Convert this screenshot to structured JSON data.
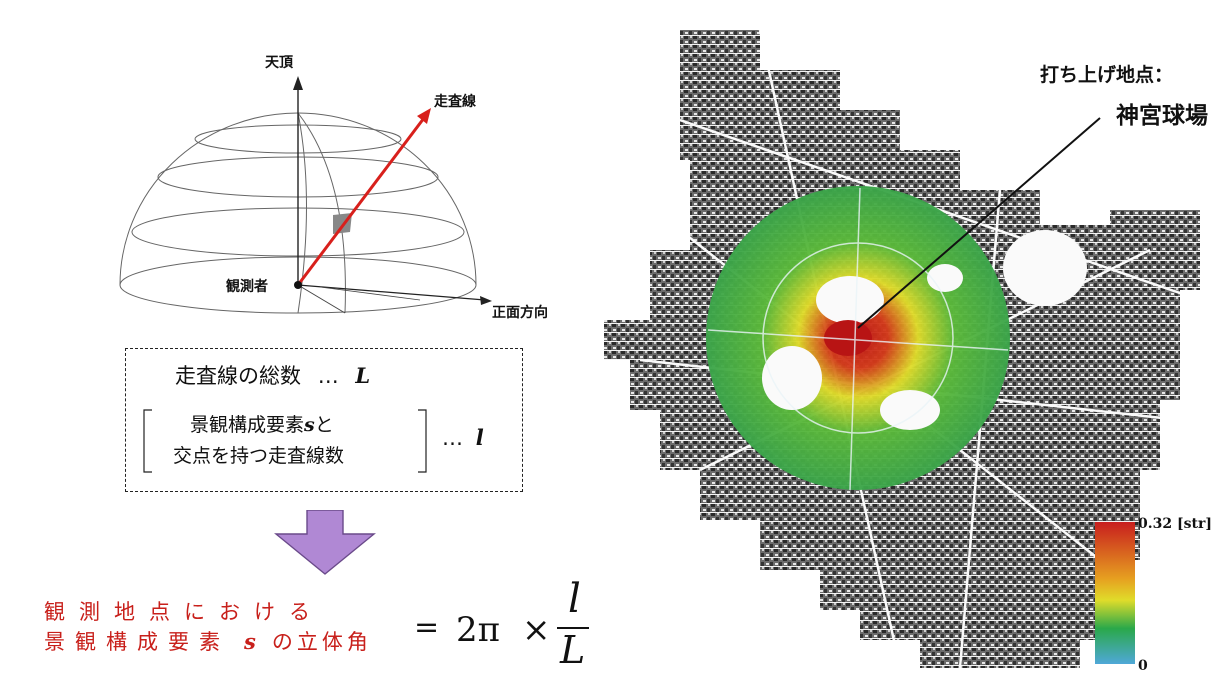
{
  "hemisphere": {
    "zenith_label": "天頂",
    "scan_line_label": "走査線",
    "observer_label": "観測者",
    "front_direction_label": "正面方向"
  },
  "definition_box": {
    "total_line": "走査線の総数",
    "ellipsis1": "…",
    "var_L": "L",
    "bracket_line1": "景観構成要素",
    "bracket_var_s": "s",
    "bracket_line1_end": "と",
    "bracket_line2": "交点を持つ走査線数",
    "ellipsis2": "…",
    "var_l": "l"
  },
  "formula": {
    "left_line1": "観測地点における",
    "left_line2_a": "景観構成要素",
    "left_line2_s": "s",
    "left_line2_b": "の立体角",
    "equals": "=",
    "coef": "2π",
    "times": "×",
    "numerator": "l",
    "denominator": "L"
  },
  "map": {
    "launch_label": "打ち上げ地点：",
    "launch_place": "神宮球場",
    "legend_max": "0.32 [str]",
    "legend_min": "0",
    "colors": {
      "high": "#c81e1e",
      "mid_yellow": "#e0dc2a",
      "green": "#2aa84a",
      "low": "#4fa8d8"
    }
  }
}
